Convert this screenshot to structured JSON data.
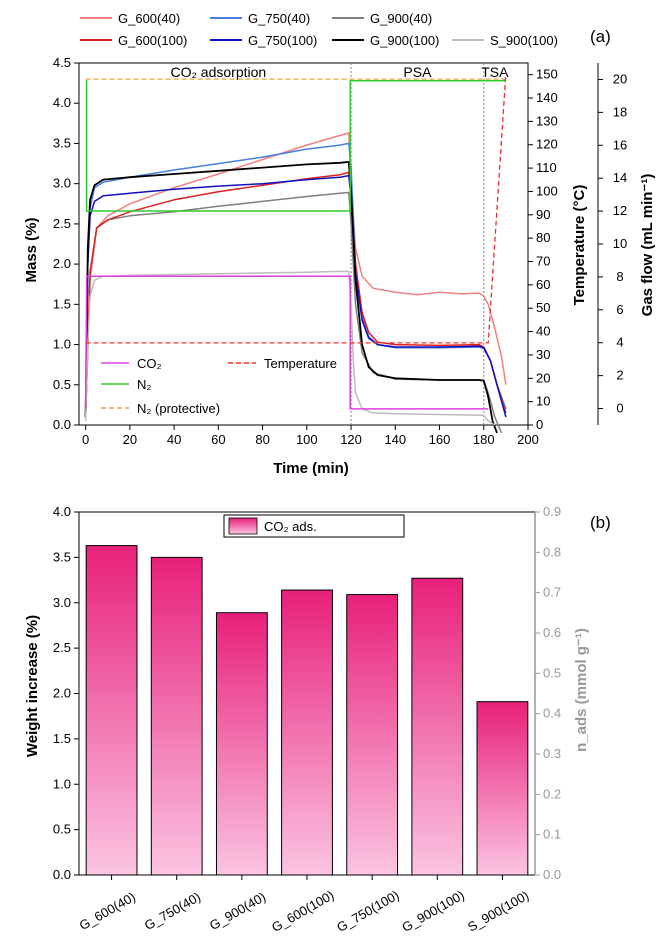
{
  "chart_data": [
    {
      "panel": "(a)",
      "type": "line",
      "xlabel": "Time (min)",
      "xlim": [
        -3,
        200
      ],
      "xticks": [
        0,
        20,
        40,
        60,
        80,
        100,
        120,
        140,
        160,
        180,
        200
      ],
      "ylabel": "Mass (%)",
      "ylim": [
        0,
        4.5
      ],
      "yticks": [
        "0.0",
        "0.5",
        "1.0",
        "1.5",
        "2.0",
        "2.5",
        "3.0",
        "3.5",
        "4.0",
        "4.5"
      ],
      "y2label": "Temperature (°C)",
      "y2lim": [
        0,
        155
      ],
      "y2ticks": [
        0,
        10,
        20,
        30,
        40,
        50,
        60,
        70,
        80,
        90,
        100,
        110,
        120,
        130,
        140,
        150
      ],
      "y3label": "Gas flow (mL min⁻¹)",
      "y3lim": [
        -1,
        21
      ],
      "y3ticks": [
        0,
        2,
        4,
        6,
        8,
        10,
        12,
        14,
        16,
        18,
        20
      ],
      "phases": [
        {
          "label": "CO₂ adsorption",
          "start": 0,
          "end": 120
        },
        {
          "label": "PSA",
          "start": 120,
          "end": 180
        },
        {
          "label": "TSA",
          "start": 180,
          "end": 190
        }
      ],
      "legend_top": [
        "G_600(40)",
        "G_750(40)",
        "G_900(40)",
        "G_600(100)",
        "G_750(100)",
        "G_900(100)",
        "S_900(100)"
      ],
      "legend_inner": [
        "CO₂",
        "N₂",
        "N₂ (protective)",
        "Temperature"
      ],
      "series": [
        {
          "name": "G_600(40)",
          "color": "#f08080",
          "width": 1.5,
          "points": [
            [
              0,
              0.1
            ],
            [
              2,
              1.8
            ],
            [
              5,
              2.45
            ],
            [
              10,
              2.6
            ],
            [
              20,
              2.75
            ],
            [
              40,
              2.95
            ],
            [
              60,
              3.12
            ],
            [
              80,
              3.3
            ],
            [
              100,
              3.48
            ],
            [
              115,
              3.6
            ],
            [
              119,
              3.63
            ],
            [
              120,
              3.0
            ],
            [
              122,
              2.2
            ],
            [
              125,
              1.85
            ],
            [
              130,
              1.7
            ],
            [
              140,
              1.65
            ],
            [
              150,
              1.62
            ],
            [
              160,
              1.65
            ],
            [
              170,
              1.63
            ],
            [
              178,
              1.64
            ],
            [
              180,
              1.6
            ],
            [
              182,
              1.5
            ],
            [
              185,
              1.2
            ],
            [
              188,
              0.85
            ],
            [
              190,
              0.5
            ]
          ]
        },
        {
          "name": "G_750(40)",
          "color": "#4a7fe0",
          "width": 1.5,
          "points": [
            [
              0,
              0.1
            ],
            [
              1,
              2.0
            ],
            [
              2,
              2.7
            ],
            [
              4,
              2.95
            ],
            [
              8,
              3.02
            ],
            [
              20,
              3.08
            ],
            [
              40,
              3.17
            ],
            [
              60,
              3.25
            ],
            [
              80,
              3.33
            ],
            [
              100,
              3.43
            ],
            [
              115,
              3.48
            ],
            [
              119,
              3.5
            ],
            [
              120,
              3.2
            ],
            [
              122,
              2.0
            ],
            [
              125,
              1.35
            ],
            [
              128,
              1.1
            ],
            [
              132,
              1.0
            ],
            [
              140,
              0.96
            ],
            [
              160,
              0.96
            ],
            [
              178,
              0.97
            ],
            [
              180,
              0.95
            ],
            [
              183,
              0.8
            ],
            [
              186,
              0.5
            ],
            [
              190,
              0.2
            ]
          ]
        },
        {
          "name": "G_900(40)",
          "color": "#7f7f7f",
          "width": 1.5,
          "points": [
            [
              0,
              0.1
            ],
            [
              2,
              1.9
            ],
            [
              5,
              2.45
            ],
            [
              10,
              2.55
            ],
            [
              20,
              2.6
            ],
            [
              40,
              2.65
            ],
            [
              60,
              2.72
            ],
            [
              80,
              2.78
            ],
            [
              100,
              2.84
            ],
            [
              115,
              2.88
            ],
            [
              119,
              2.89
            ],
            [
              120,
              2.5
            ],
            [
              122,
              1.5
            ],
            [
              125,
              0.9
            ],
            [
              130,
              0.65
            ],
            [
              140,
              0.57
            ],
            [
              160,
              0.56
            ],
            [
              178,
              0.56
            ],
            [
              180,
              0.55
            ],
            [
              182,
              0.4
            ],
            [
              185,
              0.1
            ],
            [
              188,
              -0.1
            ]
          ]
        },
        {
          "name": "G_600(100)",
          "color": "#e02020",
          "width": 1.5,
          "points": [
            [
              0,
              0.1
            ],
            [
              2,
              1.9
            ],
            [
              5,
              2.45
            ],
            [
              10,
              2.55
            ],
            [
              20,
              2.65
            ],
            [
              40,
              2.8
            ],
            [
              60,
              2.9
            ],
            [
              80,
              2.98
            ],
            [
              100,
              3.06
            ],
            [
              115,
              3.11
            ],
            [
              119,
              3.14
            ],
            [
              120,
              2.8
            ],
            [
              122,
              2.0
            ],
            [
              125,
              1.4
            ],
            [
              128,
              1.15
            ],
            [
              132,
              1.03
            ],
            [
              140,
              1.0
            ],
            [
              160,
              0.99
            ],
            [
              178,
              1.0
            ],
            [
              180,
              0.97
            ],
            [
              183,
              0.8
            ],
            [
              186,
              0.5
            ],
            [
              190,
              0.15
            ]
          ]
        },
        {
          "name": "G_750(100)",
          "color": "#1010c0",
          "width": 1.5,
          "points": [
            [
              0,
              0.1
            ],
            [
              1,
              2.0
            ],
            [
              2,
              2.6
            ],
            [
              4,
              2.78
            ],
            [
              8,
              2.85
            ],
            [
              20,
              2.88
            ],
            [
              40,
              2.93
            ],
            [
              60,
              2.97
            ],
            [
              80,
              3.0
            ],
            [
              100,
              3.05
            ],
            [
              115,
              3.08
            ],
            [
              119,
              3.1
            ],
            [
              120,
              2.8
            ],
            [
              122,
              1.9
            ],
            [
              125,
              1.3
            ],
            [
              128,
              1.08
            ],
            [
              132,
              1.0
            ],
            [
              140,
              0.97
            ],
            [
              160,
              0.97
            ],
            [
              178,
              0.98
            ],
            [
              180,
              0.96
            ],
            [
              183,
              0.8
            ],
            [
              186,
              0.5
            ],
            [
              190,
              0.1
            ]
          ]
        },
        {
          "name": "G_900(100)",
          "color": "#000000",
          "width": 1.8,
          "points": [
            [
              0,
              0.1
            ],
            [
              1,
              2.2
            ],
            [
              2,
              2.8
            ],
            [
              4,
              2.98
            ],
            [
              8,
              3.05
            ],
            [
              20,
              3.08
            ],
            [
              40,
              3.12
            ],
            [
              60,
              3.16
            ],
            [
              80,
              3.2
            ],
            [
              100,
              3.24
            ],
            [
              115,
              3.26
            ],
            [
              119,
              3.27
            ],
            [
              120,
              2.9
            ],
            [
              122,
              1.8
            ],
            [
              125,
              1.0
            ],
            [
              128,
              0.72
            ],
            [
              132,
              0.62
            ],
            [
              140,
              0.58
            ],
            [
              160,
              0.56
            ],
            [
              178,
              0.56
            ],
            [
              180,
              0.55
            ],
            [
              182,
              0.35
            ],
            [
              184,
              0.05
            ],
            [
              186,
              -0.1
            ]
          ]
        },
        {
          "name": "S_900(100)",
          "color": "#bdbdbd",
          "width": 1.5,
          "points": [
            [
              0,
              0.05
            ],
            [
              1,
              1.0
            ],
            [
              2,
              1.6
            ],
            [
              4,
              1.8
            ],
            [
              8,
              1.85
            ],
            [
              20,
              1.86
            ],
            [
              60,
              1.88
            ],
            [
              100,
              1.9
            ],
            [
              115,
              1.91
            ],
            [
              119,
              1.91
            ],
            [
              120,
              1.5
            ],
            [
              121,
              0.8
            ],
            [
              122,
              0.4
            ],
            [
              125,
              0.2
            ],
            [
              130,
              0.15
            ],
            [
              140,
              0.14
            ],
            [
              160,
              0.13
            ],
            [
              180,
              0.12
            ],
            [
              182,
              0.05
            ],
            [
              185,
              0.0
            ]
          ]
        },
        {
          "name": "CO₂",
          "color": "#e040e0",
          "width": 1.5,
          "points": [
            [
              0,
              0.2
            ],
            [
              0.5,
              1.85
            ],
            [
              119.6,
              1.85
            ],
            [
              119.6,
              0.2
            ],
            [
              182,
              0.2
            ]
          ]
        },
        {
          "name": "N₂",
          "color": "#2ecc2e",
          "width": 1.5,
          "points": [
            [
              0,
              4.28
            ],
            [
              0.4,
              4.28
            ],
            [
              0.4,
              2.66
            ],
            [
              119.6,
              2.66
            ],
            [
              119.6,
              4.28
            ],
            [
              190,
              4.28
            ]
          ]
        },
        {
          "name": "N₂ (protective)",
          "color": "#f0a040",
          "width": 1.3,
          "dash": "5,3",
          "points": [
            [
              0,
              4.3
            ],
            [
              190,
              4.3
            ]
          ]
        },
        {
          "name": "Temperature",
          "color": "#f03030",
          "width": 1.3,
          "dash": "5,3",
          "points": [
            [
              0,
              1.02
            ],
            [
              182,
              1.02
            ],
            [
              190,
              4.38
            ]
          ]
        }
      ]
    },
    {
      "panel": "(b)",
      "type": "bar",
      "categories": [
        "G_600(40)",
        "G_750(40)",
        "G_900(40)",
        "G_600(100)",
        "G_750(100)",
        "G_900(100)",
        "S_900(100)"
      ],
      "values": [
        3.63,
        3.5,
        2.89,
        3.14,
        3.09,
        3.27,
        1.91
      ],
      "ylabel": "Weight increase (%)",
      "ylim": [
        0,
        4.0
      ],
      "yticks": [
        "0.0",
        "0.5",
        "1.0",
        "1.5",
        "2.0",
        "2.5",
        "3.0",
        "3.5",
        "4.0"
      ],
      "y2label": "n_ads (mmol g⁻¹)",
      "y2lim": [
        0,
        0.9
      ],
      "y2ticks": [
        "0.0",
        "0.1",
        "0.2",
        "0.3",
        "0.4",
        "0.5",
        "0.6",
        "0.7",
        "0.8",
        "0.9"
      ],
      "legend": "CO₂ ads.",
      "bar_color_top": "#e8207a",
      "bar_color_bottom": "#fbc4e2",
      "y2_axis_color": "#999999"
    }
  ]
}
